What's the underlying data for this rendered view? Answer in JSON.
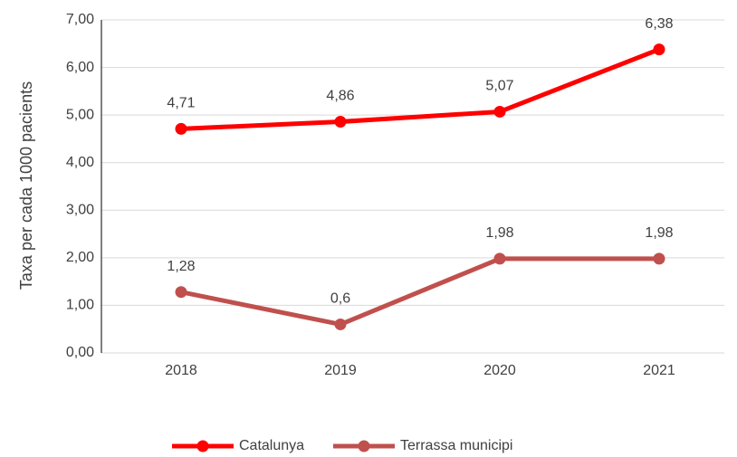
{
  "chart_data": {
    "type": "line",
    "y_label": "Taxa per cada 1000 pacients",
    "categories": [
      "2018",
      "2019",
      "2020",
      "2021"
    ],
    "series": [
      {
        "name": "Catalunya",
        "color": "#ff0000",
        "values": [
          4.71,
          4.86,
          5.07,
          6.38
        ],
        "value_labels": [
          "4,71",
          "4,86",
          "5,07",
          "6,38"
        ]
      },
      {
        "name": "Terrassa municipi",
        "color": "#c0504d",
        "values": [
          1.28,
          0.6,
          1.98,
          1.98
        ],
        "value_labels": [
          "1,28",
          "0,6",
          "1,98",
          "1,98"
        ]
      }
    ],
    "ylim": [
      0,
      7
    ],
    "yticks": [
      {
        "value": 0,
        "label": "0,00"
      },
      {
        "value": 1,
        "label": "1,00"
      },
      {
        "value": 2,
        "label": "2,00"
      },
      {
        "value": 3,
        "label": "3,00"
      },
      {
        "value": 4,
        "label": "4,00"
      },
      {
        "value": 5,
        "label": "5,00"
      },
      {
        "value": 6,
        "label": "6,00"
      },
      {
        "value": 7,
        "label": "7,00"
      }
    ],
    "grid": true,
    "legend": "bottom"
  }
}
